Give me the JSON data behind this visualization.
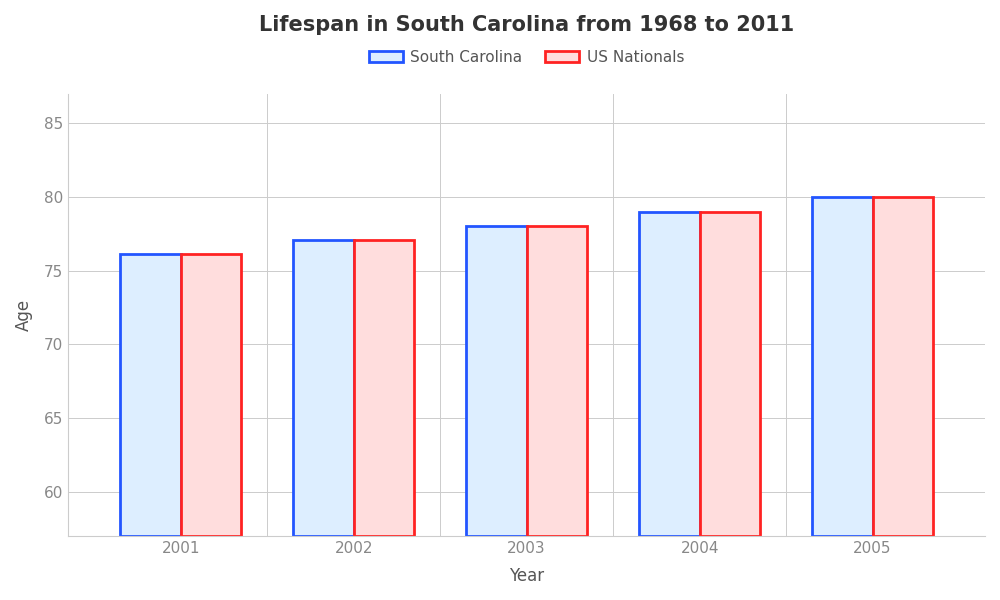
{
  "title": "Lifespan in South Carolina from 1968 to 2011",
  "xlabel": "Year",
  "ylabel": "Age",
  "years": [
    2001,
    2002,
    2003,
    2004,
    2005
  ],
  "south_carolina": [
    76.1,
    77.1,
    78.0,
    79.0,
    80.0
  ],
  "us_nationals": [
    76.1,
    77.1,
    78.0,
    79.0,
    80.0
  ],
  "ylim": [
    57,
    87
  ],
  "yticks": [
    60,
    65,
    70,
    75,
    80,
    85
  ],
  "bar_width": 0.35,
  "sc_face_color": "#ddeeff",
  "sc_edge_color": "#2255ff",
  "us_face_color": "#ffdddd",
  "us_edge_color": "#ff2222",
  "plot_bg_color": "#ffffff",
  "fig_bg_color": "#ffffff",
  "grid_color": "#cccccc",
  "spine_color": "#cccccc",
  "title_fontsize": 15,
  "axis_label_fontsize": 12,
  "tick_fontsize": 11,
  "tick_color": "#888888",
  "legend_labels": [
    "South Carolina",
    "US Nationals"
  ]
}
